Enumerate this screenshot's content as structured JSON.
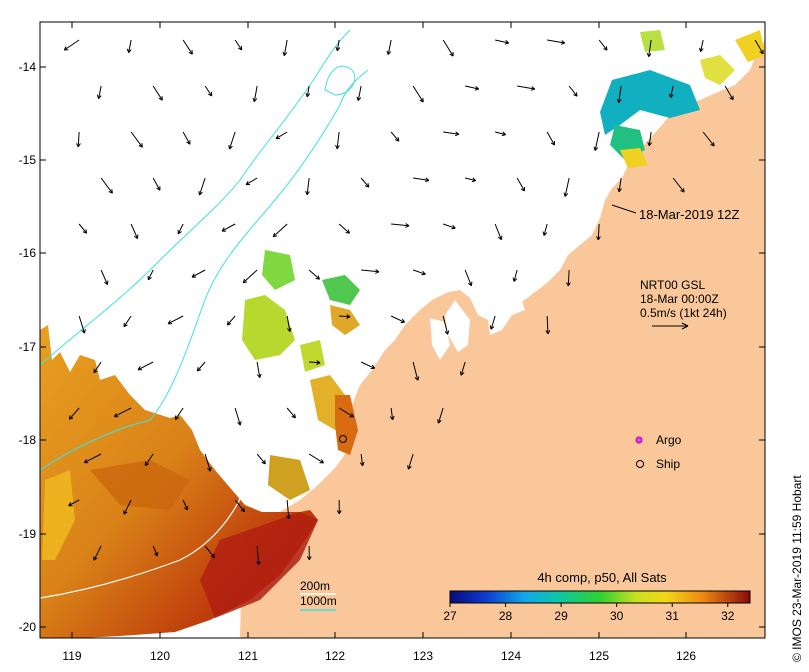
{
  "map": {
    "x_ticks": [
      "119",
      "120",
      "121",
      "122",
      "123",
      "124",
      "125",
      "126"
    ],
    "y_ticks": [
      "-14",
      "-15",
      "-16",
      "-17",
      "-18",
      "-19",
      "-20"
    ],
    "timestamp_label": "18-Mar-2019 12Z",
    "current_legend": {
      "line1": "NRT00 GSL",
      "line2": "18-Mar 00:00Z",
      "line3": "0.5m/s (1kt 24h)"
    },
    "markers": {
      "argo_label": "Argo",
      "ship_label": "Ship"
    },
    "depth_legend": {
      "contour_200": "200m",
      "contour_1000": "1000m"
    },
    "colorbar": {
      "title": "4h comp, p50, All Sats",
      "labels": [
        "27",
        "28",
        "29",
        "30",
        "31",
        "32"
      ],
      "min": 27,
      "max": 32.4
    },
    "credit": "© IMOS 23-Mar-2019 11:59 Hobart",
    "colors": {
      "land": "#f9c79a",
      "ocean": "#ffffff",
      "contour": "#3fe0e0",
      "argo": "#e040e0"
    }
  }
}
